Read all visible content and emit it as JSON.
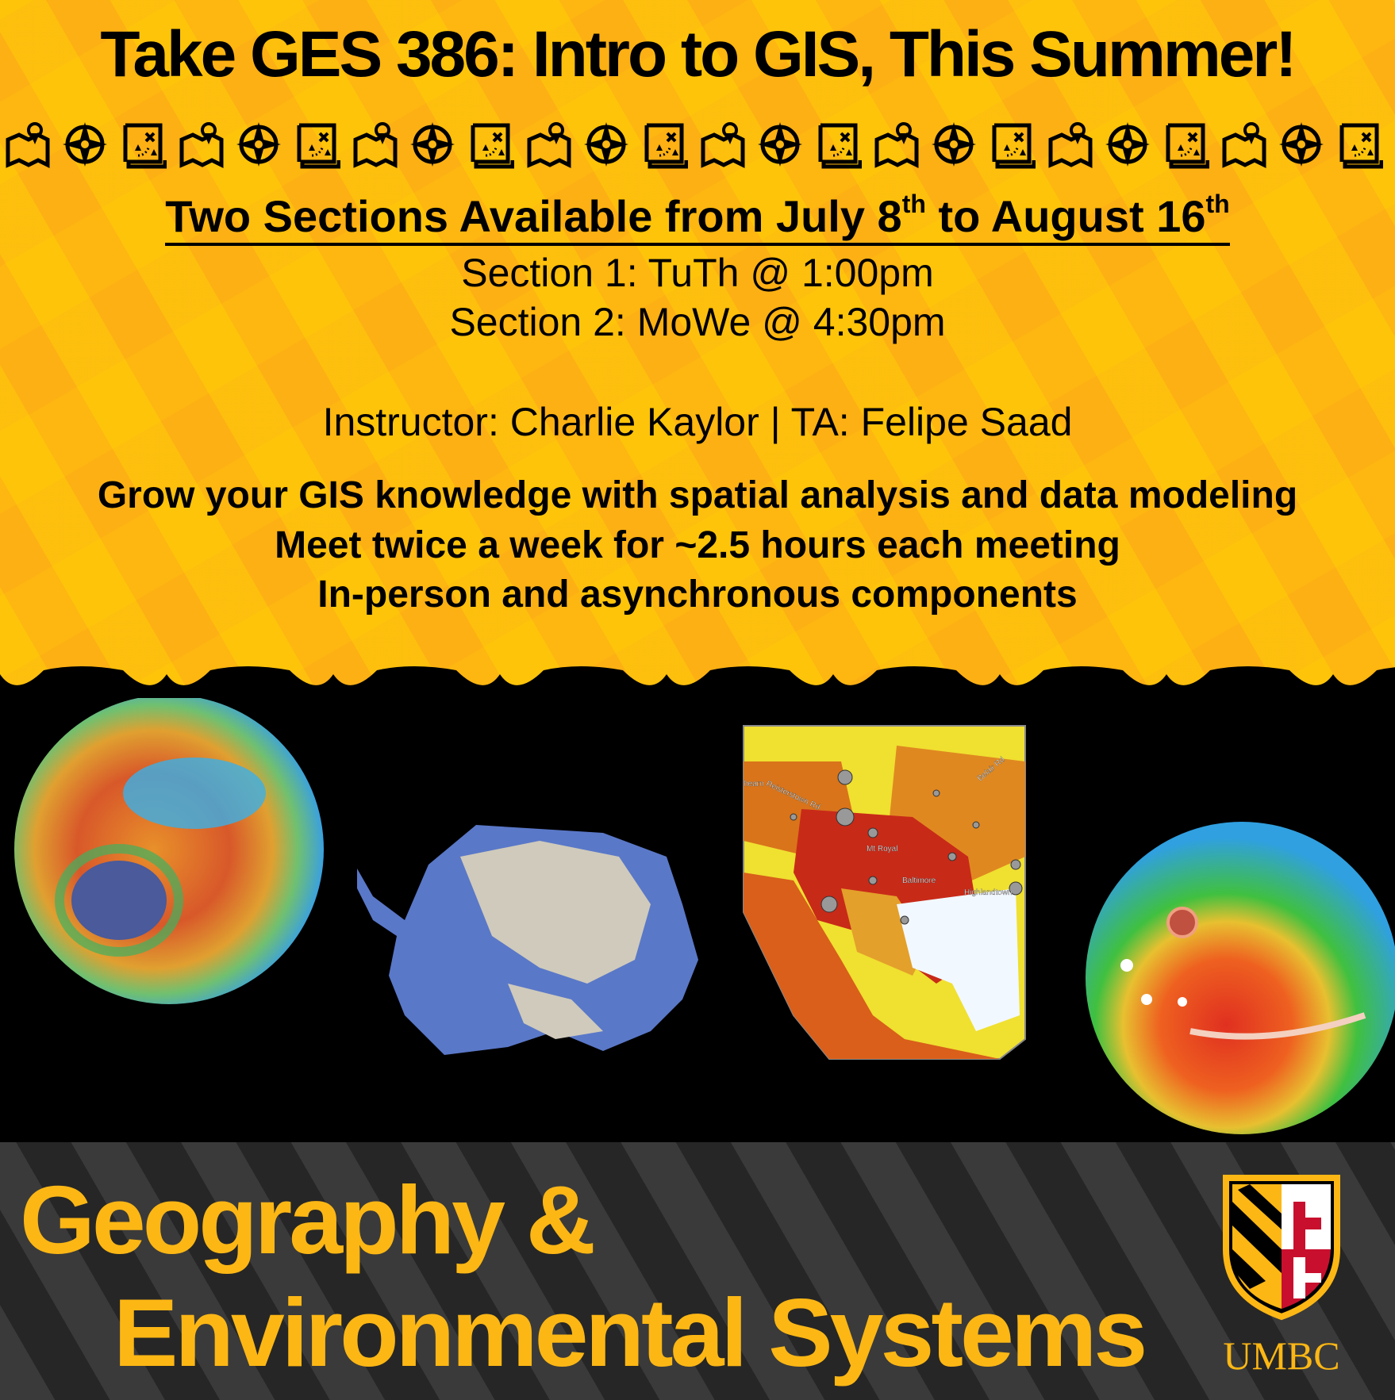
{
  "title": "Take GES 386: Intro to GIS, This Summer!",
  "icon_row": [
    "map-pin-icon",
    "compass-rose-icon",
    "treasure-map-icon"
  ],
  "availability": {
    "prefix": "Two Sections Available from July 8",
    "sup1": "th",
    "middle": " to August 16",
    "sup2": "th"
  },
  "sections": [
    "Section 1: TuTh @ 1:00pm",
    "Section 2: MoWe @ 4:30pm"
  ],
  "staff": "Instructor: Charlie Kaylor | TA: Felipe Saad",
  "highlights": [
    "Grow your GIS knowledge with spatial analysis and data modeling",
    "Meet twice a week for ~2.5 hours each meeting",
    "In-person and asynchronous components"
  ],
  "map_labels": {
    "road1": "Reisterstown Rd",
    "road2": "Belair Rd",
    "place1": "Mt Royal",
    "place2": "Baltimore",
    "place3": "Highlandtown",
    "place4": "hearn"
  },
  "department": {
    "line1": "Geography &",
    "line2": "Environmental Systems"
  },
  "logo_text": "UMBC",
  "colors": {
    "gold": "#fdb714",
    "black": "#000000",
    "red": "#c8102e"
  }
}
